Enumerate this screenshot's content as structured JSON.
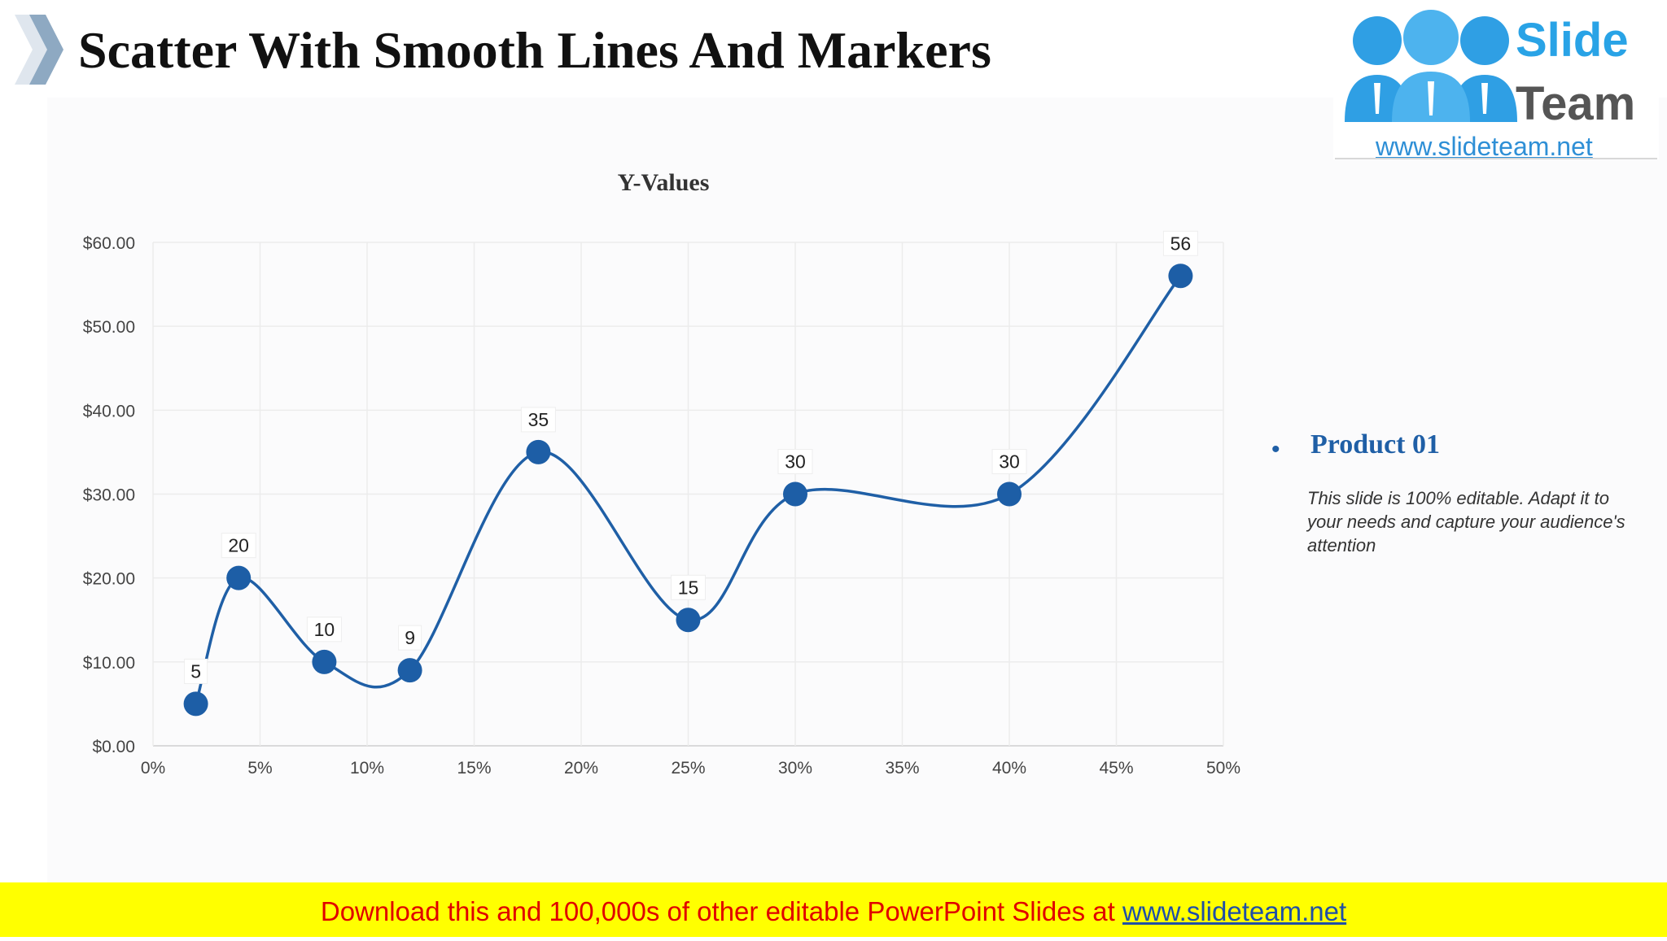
{
  "slide": {
    "title": "Scatter With Smooth Lines And Markers"
  },
  "logo": {
    "brand_top": "Slide",
    "brand_bottom": "Team",
    "url": "www.slideteam.net"
  },
  "legend": {
    "title": "Product 01",
    "description": "This slide is 100% editable. Adapt it to your needs and capture your audience's attention"
  },
  "banner": {
    "text": "Download this and 100,000s of other editable PowerPoint Slides at",
    "link": "www.slideteam.net"
  },
  "colors": {
    "series": "#1f5fa6",
    "marker": "#1d5ea6",
    "legend": "#1f5fa6",
    "banner_bg": "#ffff00",
    "banner_text": "#e00000"
  },
  "chart_data": {
    "type": "scatter",
    "title": "Y-Values",
    "xlabel": "",
    "ylabel": "",
    "xlim": [
      0,
      0.5
    ],
    "ylim": [
      0,
      60
    ],
    "grid": true,
    "x_ticks": [
      "0%",
      "5%",
      "10%",
      "15%",
      "20%",
      "25%",
      "30%",
      "35%",
      "40%",
      "45%",
      "50%"
    ],
    "y_ticks": [
      "$0.00",
      "$10.00",
      "$20.00",
      "$30.00",
      "$40.00",
      "$50.00",
      "$60.00"
    ],
    "series": [
      {
        "name": "Product 01",
        "line": "smooth",
        "x": [
          0.02,
          0.04,
          0.08,
          0.12,
          0.18,
          0.25,
          0.3,
          0.4,
          0.48
        ],
        "y": [
          5,
          20,
          10,
          9,
          35,
          15,
          30,
          30,
          56
        ],
        "labels": [
          "5",
          "20",
          "10",
          "9",
          "35",
          "15",
          "30",
          "30",
          "56"
        ]
      }
    ]
  }
}
